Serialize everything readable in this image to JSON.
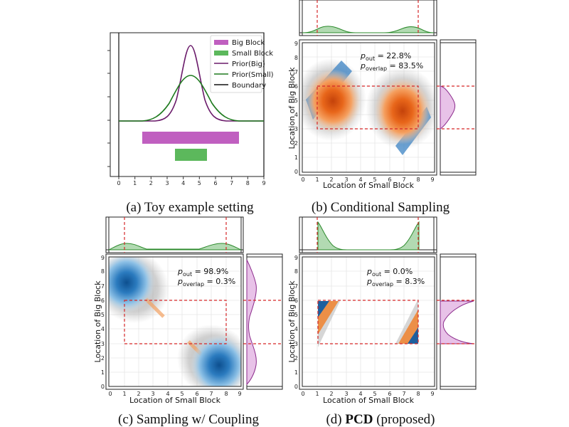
{
  "panels": {
    "a": {
      "caption": "(a) Toy example setting",
      "x_ticks": [
        "0",
        "1",
        "2",
        "3",
        "4",
        "5",
        "6",
        "7",
        "8",
        "9"
      ],
      "legend": [
        "Big Block",
        "Small Block",
        "Prior(Big)",
        "Prior(Small)",
        "Boundary"
      ],
      "colors": {
        "big": "#c05fc0",
        "small": "#5cb85c",
        "prior_big": "#7a1a7a",
        "prior_small": "#1e7a1e",
        "boundary": "#111111"
      }
    },
    "b": {
      "caption": "(b) Conditional Sampling",
      "xlabel": "Location of Small Block",
      "ylabel": "Location of Big Block",
      "p_out_label": "p",
      "p_out_sub": "out",
      "p_out_value": " = 22.8%",
      "p_overlap_label": "p",
      "p_overlap_sub": "overlap",
      "p_overlap_value": " = 83.5%"
    },
    "c": {
      "caption": "(c) Sampling w/ Coupling",
      "xlabel": "Location of Small Block",
      "ylabel": "Location of Big Block",
      "p_out_label": "p",
      "p_out_sub": "out",
      "p_out_value": " = 98.9%",
      "p_overlap_label": "p",
      "p_overlap_sub": "overlap",
      "p_overlap_value": " = 0.3%"
    },
    "d": {
      "caption_prefix": "(d) ",
      "caption_bold": "PCD",
      "caption_suffix": " (proposed)",
      "xlabel": "Location of Small Block",
      "ylabel": "Location of Big Block",
      "p_out_label": "p",
      "p_out_sub": "out",
      "p_out_value": " = 0.0%",
      "p_overlap_label": "p",
      "p_overlap_sub": "overlap",
      "p_overlap_value": " = 8.3%"
    }
  },
  "tick_labels": [
    "0",
    "1",
    "2",
    "3",
    "4",
    "5",
    "6",
    "7",
    "8",
    "9"
  ]
}
